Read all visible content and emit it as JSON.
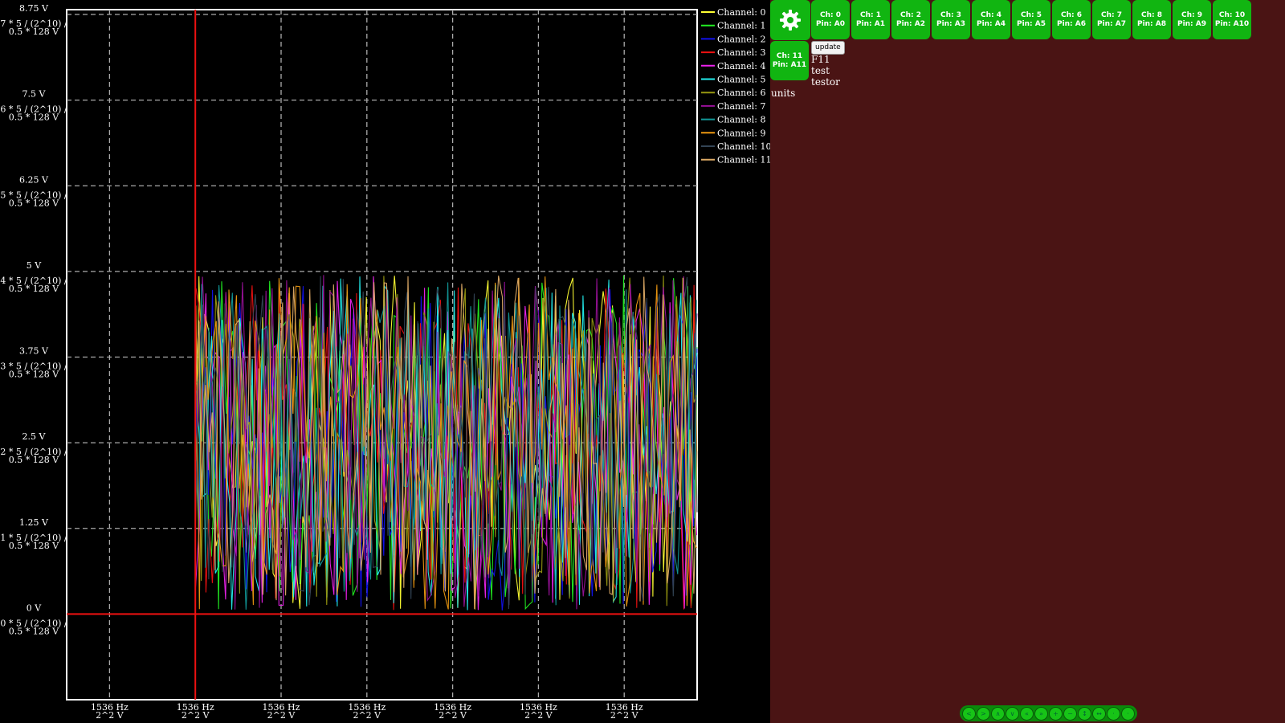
{
  "chart_data": {
    "type": "line",
    "title": "",
    "ylim": [
      -1.25,
      8.75
    ],
    "y_ticks": [
      {
        "value": 8.75,
        "label": "8.75 V",
        "raw": [
          "7 * 5 / (2^10) /",
          "0.5 * 128 V"
        ]
      },
      {
        "value": 7.5,
        "label": "7.5 V",
        "raw": [
          "6 * 5 / (2^10) /",
          "0.5 * 128 V"
        ]
      },
      {
        "value": 6.25,
        "label": "6.25 V",
        "raw": [
          "5 * 5 / (2^10) /",
          "0.5 * 128 V"
        ]
      },
      {
        "value": 5,
        "label": "5 V",
        "raw": [
          "4 * 5 / (2^10) /",
          "0.5 * 128 V"
        ]
      },
      {
        "value": 3.75,
        "label": "3.75 V",
        "raw": [
          "3 * 5 / (2^10) /",
          "0.5 * 128 V"
        ]
      },
      {
        "value": 2.5,
        "label": "2.5 V",
        "raw": [
          "2 * 5 / (2^10) /",
          "0.5 * 128 V"
        ]
      },
      {
        "value": 1.25,
        "label": "1.25 V",
        "raw": [
          "1 * 5 / (2^10) /",
          "0.5 * 128 V"
        ]
      },
      {
        "value": 0,
        "label": "0 V",
        "raw": [
          "0 * 5 / (2^10) /",
          "0.5 * 128 V"
        ]
      }
    ],
    "x_ticks": [
      {
        "label": "1536 Hz",
        "sub": "2^2 V"
      },
      {
        "label": "1536 Hz",
        "sub": "2^2 V"
      },
      {
        "label": "1536 Hz",
        "sub": "2^2 V"
      },
      {
        "label": "1536 Hz",
        "sub": "2^2 V"
      },
      {
        "label": "1536 Hz",
        "sub": "2^2 V"
      },
      {
        "label": "1536 Hz",
        "sub": "2^2 V"
      },
      {
        "label": "1536 Hz",
        "sub": "2^2 V"
      }
    ],
    "x_tick_positions": [
      0.5,
      1.5,
      2.5,
      3.5,
      4.5,
      5.5,
      6.5
    ],
    "x_range": [
      0,
      7.35
    ],
    "trigger_x": 1.5,
    "trigger_y": 0,
    "signal_start_x": 1.5,
    "signal_range": [
      0.05,
      4.95
    ],
    "samples_per_series": 150,
    "series": [
      {
        "name": "Channel: 0",
        "color": "#ffff33"
      },
      {
        "name": "Channel: 1",
        "color": "#22ee22"
      },
      {
        "name": "Channel: 2",
        "color": "#1111ee"
      },
      {
        "name": "Channel: 3",
        "color": "#ee1111"
      },
      {
        "name": "Channel: 4",
        "color": "#ee22ee"
      },
      {
        "name": "Channel: 5",
        "color": "#22eeee"
      },
      {
        "name": "Channel: 6",
        "color": "#999911"
      },
      {
        "name": "Channel: 7",
        "color": "#991199"
      },
      {
        "name": "Channel: 8",
        "color": "#119999"
      },
      {
        "name": "Channel: 9",
        "color": "#ee9911"
      },
      {
        "name": "Channel: 10",
        "color": "#334455"
      },
      {
        "name": "Channel: 11",
        "color": "#ddaa66"
      }
    ]
  },
  "toolbar": {
    "accent": "#11b511",
    "panel_bg": "#4a1414",
    "gear_icon": "gear-icon",
    "channel_buttons": [
      {
        "ch": "Ch: 0",
        "pin": "Pin: A0"
      },
      {
        "ch": "Ch: 1",
        "pin": "Pin: A1"
      },
      {
        "ch": "Ch: 2",
        "pin": "Pin: A2"
      },
      {
        "ch": "Ch: 3",
        "pin": "Pin: A3"
      },
      {
        "ch": "Ch: 4",
        "pin": "Pin: A4"
      },
      {
        "ch": "Ch: 5",
        "pin": "Pin: A5"
      },
      {
        "ch": "Ch: 6",
        "pin": "Pin: A6"
      },
      {
        "ch": "Ch: 7",
        "pin": "Pin: A7"
      },
      {
        "ch": "Ch: 8",
        "pin": "Pin: A8"
      },
      {
        "ch": "Ch: 9",
        "pin": "Pin: A9"
      },
      {
        "ch": "Ch: 10",
        "pin": "Pin: A10"
      },
      {
        "ch": "Ch: 11",
        "pin": "Pin: A11"
      }
    ],
    "update_label": "update",
    "info_lines": [
      "F11",
      "test",
      "testor"
    ],
    "units_label": "units"
  },
  "bottom_controls": [
    "<",
    ">",
    "∧",
    "∨",
    "«",
    "»",
    "+",
    "−",
    "↕",
    "↔",
    "·",
    "·"
  ]
}
